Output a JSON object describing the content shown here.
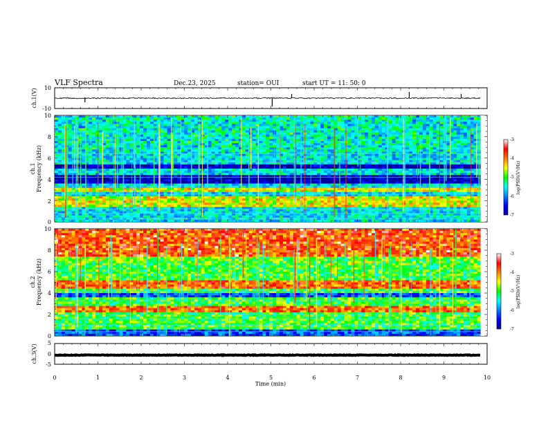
{
  "header": {
    "title": "VLF Spectra",
    "date": "Dec.23, 2025",
    "station": "station= OUI",
    "start": "start  UT =   11: 50: 0"
  },
  "chart_data": {
    "type": "spectrogram",
    "xlabel": "Time (min)",
    "xlim": [
      0,
      10
    ],
    "xticks": [
      "0",
      "1",
      "2",
      "3",
      "4",
      "5",
      "6",
      "7",
      "8",
      "9",
      "10"
    ],
    "data_end_min": 9.85,
    "panels": [
      {
        "id": "ch1-waveform",
        "type": "line",
        "ylabel": "ch.1(V)",
        "ylim": [
          -10,
          10
        ],
        "yticks": [
          "10",
          "-10"
        ],
        "baseline": 0,
        "noise_amplitude": 0.6,
        "spikes": [
          {
            "t": 0.7,
            "v": -4
          },
          {
            "t": 5.03,
            "v": -8
          },
          {
            "t": 5.48,
            "v": 4
          },
          {
            "t": 8.2,
            "v": 6
          },
          {
            "t": 9.4,
            "v": 4
          }
        ]
      },
      {
        "id": "ch1-spectrogram",
        "type": "heatmap",
        "ylabel": [
          "ch.1",
          "Frequency (kHz)"
        ],
        "ylim": [
          0,
          10
        ],
        "yticks": [
          "0",
          "2",
          "4",
          "6",
          "8",
          "10"
        ],
        "colorbar": {
          "label": "log(PSD)(V²/Hz)",
          "range": [
            -7,
            -3
          ],
          "ticks": [
            "-3",
            "-4",
            "-5",
            "-6",
            "-7"
          ]
        },
        "background_level": -5.6,
        "dark_bands_khz": [
          [
            3.6,
            4.3
          ],
          [
            5.0,
            5.3
          ]
        ],
        "bright_bands_khz": [
          [
            1.5,
            2.4
          ],
          [
            2.8,
            3.2
          ]
        ],
        "hum_lines_khz": [
          0.3,
          0.8,
          1.2,
          2.6,
          3.3,
          4.2,
          5.6,
          6.4
        ]
      },
      {
        "id": "ch2-spectrogram",
        "type": "heatmap",
        "ylabel": [
          "ch.2",
          "Frequency (kHz)"
        ],
        "ylim": [
          0,
          10
        ],
        "yticks": [
          "0",
          "2",
          "4",
          "6",
          "8",
          "10"
        ],
        "colorbar": {
          "label": "log(PSD)(V²/Hz)",
          "range": [
            -7,
            -3
          ],
          "ticks": [
            "-3",
            "-4",
            "-5",
            "-6",
            "-7"
          ]
        },
        "background_level": -5.0,
        "bright_bands_khz": [
          [
            4.4,
            5.2
          ],
          [
            2.2,
            2.9
          ],
          [
            7.5,
            10
          ]
        ],
        "dark_bands_khz": [
          [
            0.0,
            0.6
          ],
          [
            3.6,
            4.0
          ]
        ],
        "hum_lines_khz": [
          0.4,
          1.0,
          1.6,
          2.0,
          3.3,
          4.2
        ]
      },
      {
        "id": "ch3-waveform",
        "type": "line",
        "ylabel": "ch.3(V)",
        "ylim": [
          -5,
          5
        ],
        "yticks": [
          "5",
          "0",
          "-5"
        ],
        "baseline": -0.6,
        "noise_amplitude": 0.15
      }
    ]
  }
}
